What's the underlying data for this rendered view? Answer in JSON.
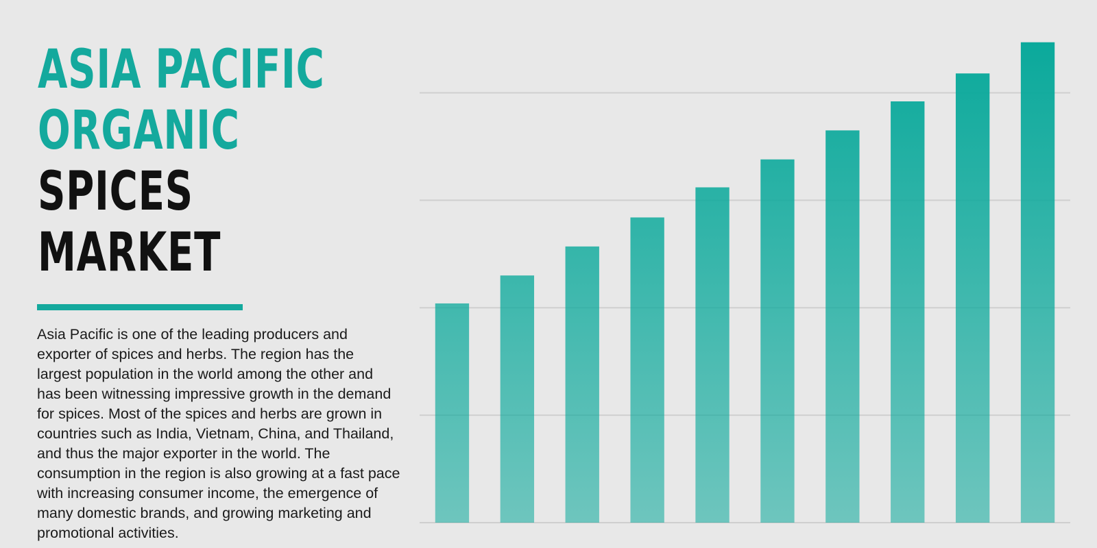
{
  "title": {
    "accent": [
      "ASIA PACIFIC",
      "ORGANIC"
    ],
    "main": [
      "SPICES",
      "MARKET"
    ]
  },
  "description": "Asia Pacific is one of the leading producers and exporter of spices and herbs. The region has the largest population in the world among the other and has been witnessing impressive growth in the demand for spices. Most of the spices and herbs are grown in countries such as India, Vietnam, China, and Thailand, and thus the major exporter in the world. The consumption in the region is also growing at a fast pace with increasing consumer income, the emergence of many domestic brands, and growing marketing and promotional activities.",
  "chart_data": {
    "type": "bar",
    "categories": [
      null,
      null,
      null,
      null,
      null,
      null,
      null,
      null,
      null,
      null
    ],
    "values": [
      2.04,
      2.3,
      2.57,
      2.84,
      3.12,
      3.38,
      3.65,
      3.92,
      4.18,
      4.47
    ],
    "color": "#0aa99b",
    "ylim": [
      0,
      4.5
    ],
    "yticks": [
      0,
      1,
      2,
      3,
      4
    ],
    "grid": true
  }
}
